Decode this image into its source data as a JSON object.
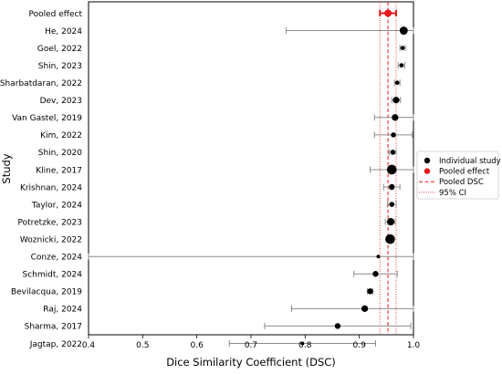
{
  "chart_data": {
    "type": "scatter",
    "chart_kind": "forest-plot",
    "xlabel": "Dice Similarity Coefficient (DSC)",
    "ylabel": "Study",
    "xlim": [
      0.4,
      1.0
    ],
    "xticks": [
      "0.4",
      "0.5",
      "0.6",
      "0.7",
      "0.8",
      "0.9",
      "1.0"
    ],
    "grid": false,
    "legend_position": "right",
    "legend": [
      {
        "label": "Individual study",
        "marker": "black-dot"
      },
      {
        "label": "Pooled effect",
        "marker": "red-dot"
      },
      {
        "label": "Pooled DSC",
        "marker": "red-dashed-line"
      },
      {
        "label": "95% CI",
        "marker": "red-dotted-line"
      }
    ],
    "colors": {
      "study": "#000000",
      "pooled": "#e8191b",
      "ci_bar": "#8c8c8c"
    },
    "pooled": {
      "label": "Pooled effect",
      "estimate": 0.953,
      "ci_low": 0.938,
      "ci_high": 0.968
    },
    "studies": [
      {
        "label": "He, 2024",
        "estimate": 0.982,
        "ci_low": 0.765,
        "ci_high": 1.0,
        "weight": 8
      },
      {
        "label": "Goel, 2022",
        "estimate": 0.98,
        "ci_low": 0.975,
        "ci_high": 0.985,
        "weight": 3
      },
      {
        "label": "Shin, 2023",
        "estimate": 0.978,
        "ci_low": 0.972,
        "ci_high": 0.984,
        "weight": 3
      },
      {
        "label": "Sharbatdaran, 2022",
        "estimate": 0.97,
        "ci_low": 0.965,
        "ci_high": 0.975,
        "weight": 3
      },
      {
        "label": "Dev, 2023",
        "estimate": 0.968,
        "ci_low": 0.96,
        "ci_high": 0.976,
        "weight": 6
      },
      {
        "label": "Van Gastel, 2019",
        "estimate": 0.966,
        "ci_low": 0.928,
        "ci_high": 1.0,
        "weight": 6
      },
      {
        "label": "Kim, 2022",
        "estimate": 0.963,
        "ci_low": 0.928,
        "ci_high": 0.998,
        "weight": 4
      },
      {
        "label": "Shin, 2020",
        "estimate": 0.962,
        "ci_low": 0.955,
        "ci_high": 0.968,
        "weight": 4
      },
      {
        "label": "Kline, 2017",
        "estimate": 0.96,
        "ci_low": 0.92,
        "ci_high": 1.0,
        "weight": 10
      },
      {
        "label": "Krishnan, 2024",
        "estimate": 0.96,
        "ci_low": 0.945,
        "ci_high": 0.975,
        "weight": 5
      },
      {
        "label": "Taylor, 2024",
        "estimate": 0.96,
        "ci_low": 0.952,
        "ci_high": 0.968,
        "weight": 4
      },
      {
        "label": "Potretzke, 2023",
        "estimate": 0.958,
        "ci_low": 0.948,
        "ci_high": 0.966,
        "weight": 7
      },
      {
        "label": "Woznicki, 2022",
        "estimate": 0.957,
        "ci_low": 0.95,
        "ci_high": 0.964,
        "weight": 10
      },
      {
        "label": "Conze, 2024",
        "estimate": 0.935,
        "ci_low": 0.4,
        "ci_high": 1.0,
        "weight": 2
      },
      {
        "label": "Schmidt, 2024",
        "estimate": 0.93,
        "ci_low": 0.89,
        "ci_high": 0.97,
        "weight": 5
      },
      {
        "label": "Bevilacqua, 2019",
        "estimate": 0.92,
        "ci_low": 0.915,
        "ci_high": 0.925,
        "weight": 5
      },
      {
        "label": "Raj, 2024",
        "estimate": 0.91,
        "ci_low": 0.775,
        "ci_high": 1.0,
        "weight": 6
      },
      {
        "label": "Sharma, 2017",
        "estimate": 0.86,
        "ci_low": 0.725,
        "ci_high": 0.995,
        "weight": 5
      },
      {
        "label": "Jagtap, 2022",
        "estimate": 0.795,
        "ci_low": 0.66,
        "ci_high": 0.93,
        "weight": 2
      }
    ]
  }
}
